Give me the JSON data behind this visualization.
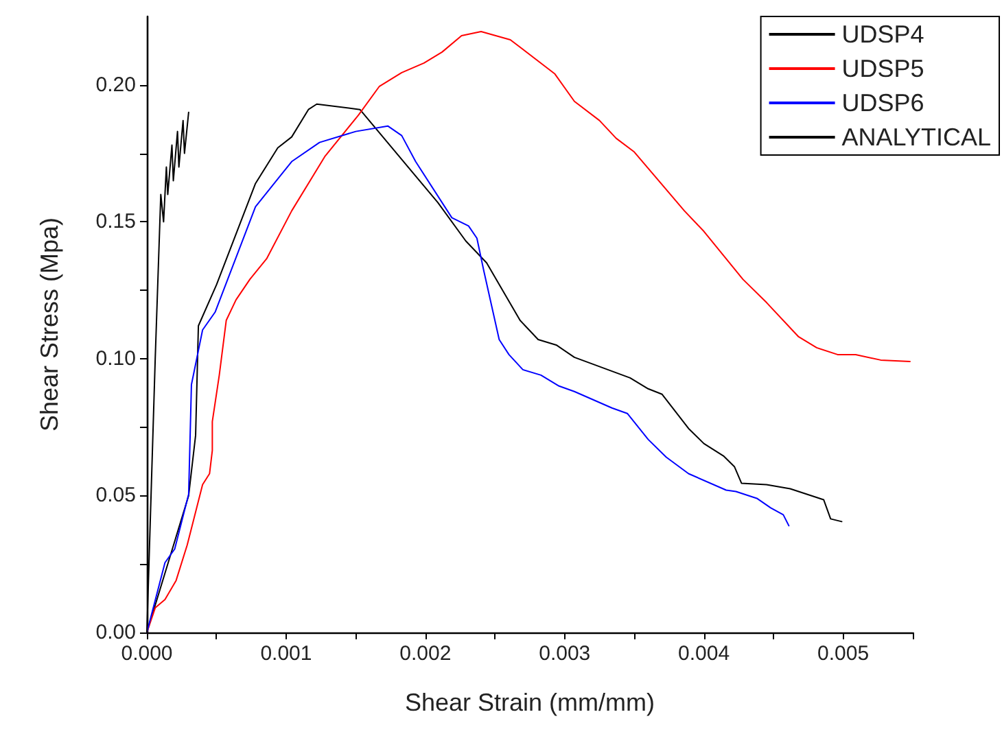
{
  "chart_data": {
    "type": "line",
    "xlabel": "Shear Strain (mm/mm)",
    "ylabel": "Shear Stress (Mpa)",
    "xlim": [
      0,
      0.0055
    ],
    "ylim": [
      0,
      0.225
    ],
    "xticks": [
      {
        "value": 0,
        "label": "0.000"
      },
      {
        "value": 0.0005,
        "label": null
      },
      {
        "value": 0.001,
        "label": "0.001"
      },
      {
        "value": 0.0015,
        "label": null
      },
      {
        "value": 0.002,
        "label": "0.002"
      },
      {
        "value": 0.0025,
        "label": null
      },
      {
        "value": 0.003,
        "label": "0.003"
      },
      {
        "value": 0.0035,
        "label": null
      },
      {
        "value": 0.004,
        "label": "0.004"
      },
      {
        "value": 0.0045,
        "label": null
      },
      {
        "value": 0.005,
        "label": "0.005"
      },
      {
        "value": 0.0055,
        "label": null
      }
    ],
    "yticks": [
      {
        "value": 0,
        "label": "0.00"
      },
      {
        "value": 0.025,
        "label": null
      },
      {
        "value": 0.05,
        "label": "0.05"
      },
      {
        "value": 0.075,
        "label": null
      },
      {
        "value": 0.1,
        "label": "0.10"
      },
      {
        "value": 0.125,
        "label": null
      },
      {
        "value": 0.15,
        "label": "0.15"
      },
      {
        "value": 0.175,
        "label": null
      },
      {
        "value": 0.2,
        "label": "0.20"
      }
    ],
    "grid": false,
    "legend": "top right",
    "marker": "none",
    "line_style": "solid",
    "series": [
      {
        "name": "UDSP4",
        "color": "#000000",
        "x": [
          0,
          0.0003,
          0.00035,
          0.00037,
          0.0005,
          0.00078,
          0.00094,
          0.00104,
          0.00116,
          0.00122,
          0.00153,
          0.00209,
          0.00229,
          0.00244,
          0.00268,
          0.00281,
          0.00294,
          0.00307,
          0.00347,
          0.0036,
          0.0037,
          0.00389,
          0.004,
          0.00414,
          0.00422,
          0.00427,
          0.00445,
          0.00462,
          0.00486,
          0.00491,
          0.00499
        ],
        "values": [
          0,
          0.05,
          0.072,
          0.112,
          0.127,
          0.164,
          0.177,
          0.181,
          0.191,
          0.193,
          0.191,
          0.157,
          0.143,
          0.135,
          0.114,
          0.107,
          0.105,
          0.1005,
          0.093,
          0.089,
          0.087,
          0.0745,
          0.069,
          0.0645,
          0.0605,
          0.0545,
          0.054,
          0.0525,
          0.0485,
          0.0415,
          0.0405
        ]
      },
      {
        "name": "UDSP5",
        "color": "#ff0000",
        "x": [
          0,
          6e-05,
          0.00013,
          0.00021,
          0.00029,
          0.0004,
          0.00045,
          0.00047,
          0.00047,
          0.00052,
          0.00057,
          0.00064,
          0.00074,
          0.00086,
          0.00104,
          0.00128,
          0.00152,
          0.00167,
          0.00183,
          0.00199,
          0.00212,
          0.00226,
          0.0024,
          0.00261,
          0.00293,
          0.00307,
          0.00325,
          0.00337,
          0.0035,
          0.00386,
          0.004,
          0.00428,
          0.00445,
          0.00468,
          0.00481,
          0.00496,
          0.00509,
          0.00527,
          0.00548
        ],
        "values": [
          0,
          0.009,
          0.012,
          0.019,
          0.032,
          0.054,
          0.058,
          0.0665,
          0.077,
          0.094,
          0.114,
          0.1215,
          0.129,
          0.1365,
          0.154,
          0.174,
          0.189,
          0.1995,
          0.2045,
          0.208,
          0.212,
          0.218,
          0.2195,
          0.2165,
          0.204,
          0.194,
          0.187,
          0.1805,
          0.1755,
          0.154,
          0.1465,
          0.129,
          0.1205,
          0.108,
          0.104,
          0.1015,
          0.1015,
          0.0995,
          0.099
        ]
      },
      {
        "name": "UDSP6",
        "color": "#0000ff",
        "x": [
          0,
          0.00013,
          0.0002,
          0.0003,
          0.00032,
          0.0004,
          0.00049,
          0.00078,
          0.00104,
          0.00124,
          0.0015,
          0.00173,
          0.00183,
          0.00193,
          0.00219,
          0.00231,
          0.00237,
          0.00242,
          0.00253,
          0.0026,
          0.0027,
          0.00283,
          0.00296,
          0.00307,
          0.00334,
          0.00345,
          0.0036,
          0.00373,
          0.00389,
          0.00416,
          0.00423,
          0.00438,
          0.00448,
          0.00457,
          0.00461
        ],
        "values": [
          0,
          0.0255,
          0.0305,
          0.0505,
          0.0905,
          0.1105,
          0.117,
          0.1555,
          0.172,
          0.179,
          0.183,
          0.185,
          0.1815,
          0.172,
          0.1515,
          0.1485,
          0.144,
          0.132,
          0.107,
          0.1015,
          0.096,
          0.094,
          0.09,
          0.088,
          0.082,
          0.08,
          0.0705,
          0.064,
          0.058,
          0.052,
          0.0515,
          0.049,
          0.0455,
          0.043,
          0.039
        ]
      },
      {
        "name": "ANALYTICAL",
        "color": "#000000",
        "x": [
          0,
          3e-05,
          6e-05,
          9e-05,
          0.0001,
          0.00012,
          0.00014,
          0.00015,
          0.00018,
          0.00019,
          0.00022,
          0.00023,
          0.00026,
          0.00027,
          0.0003
        ],
        "values": [
          0,
          0.05,
          0.1,
          0.145,
          0.16,
          0.15,
          0.17,
          0.16,
          0.178,
          0.165,
          0.183,
          0.17,
          0.187,
          0.175,
          0.19
        ]
      }
    ]
  }
}
